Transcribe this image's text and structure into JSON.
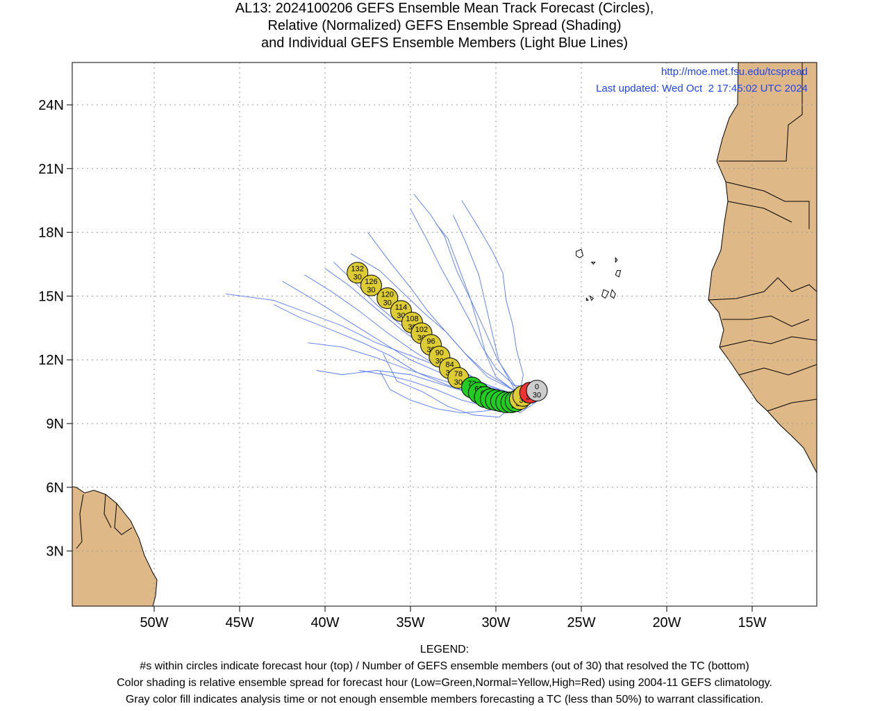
{
  "title": {
    "line1": "AL13: 2024100206 GEFS Ensemble Mean Track Forecast (Circles),",
    "line2": "Relative (Normalized) GEFS Ensemble Spread (Shading)",
    "line3": "and Individual GEFS Ensemble Members (Light Blue Lines)"
  },
  "source": {
    "url": "http://moe.met.fsu.edu/tcspread",
    "updated": "Last updated: Wed Oct  2 17:45:02 UTC 2024"
  },
  "axes": {
    "lat_ticks": [
      {
        "value": 3,
        "label": "3N"
      },
      {
        "value": 6,
        "label": "6N"
      },
      {
        "value": 9,
        "label": "9N"
      },
      {
        "value": 12,
        "label": "12N"
      },
      {
        "value": 15,
        "label": "15N"
      },
      {
        "value": 18,
        "label": "18N"
      },
      {
        "value": 21,
        "label": "21N"
      },
      {
        "value": 24,
        "label": "24N"
      }
    ],
    "lon_ticks": [
      {
        "value": -50,
        "label": "50W"
      },
      {
        "value": -45,
        "label": "45W"
      },
      {
        "value": -40,
        "label": "40W"
      },
      {
        "value": -35,
        "label": "35W"
      },
      {
        "value": -30,
        "label": "30W"
      },
      {
        "value": -25,
        "label": "25W"
      },
      {
        "value": -20,
        "label": "20W"
      },
      {
        "value": -15,
        "label": "15W"
      }
    ],
    "lon_range": [
      -55,
      -11.4
    ],
    "lat_range": [
      1.0,
      26.0
    ],
    "grid": true
  },
  "colors": {
    "land": "#deb887",
    "track": "#5577ee",
    "low_spread": "#22cc22",
    "normal_spread": "#ddcc33",
    "high_spread": "#ee3333",
    "analysis": "#cccccc",
    "link_text": "#2244ee"
  },
  "mean_track": [
    {
      "hour": "0",
      "members": "30",
      "lat": 10.55,
      "lon": -27.6,
      "spread": "analysis"
    },
    {
      "hour": "6",
      "members": "30",
      "lat": 10.45,
      "lon": -28.0,
      "spread": "high"
    },
    {
      "hour": "12",
      "members": "30",
      "lat": 10.3,
      "lon": -28.4,
      "spread": "normal"
    },
    {
      "hour": "18",
      "members": "30",
      "lat": 10.15,
      "lon": -28.6,
      "spread": "normal"
    },
    {
      "hour": "24",
      "members": "30",
      "lat": 10.05,
      "lon": -28.85,
      "spread": "low"
    },
    {
      "hour": "30",
      "members": "30",
      "lat": 10.0,
      "lon": -29.1,
      "spread": "low"
    },
    {
      "hour": "36",
      "members": "30",
      "lat": 10.0,
      "lon": -29.4,
      "spread": "low"
    },
    {
      "hour": "42",
      "members": "30",
      "lat": 10.05,
      "lon": -29.7,
      "spread": "low"
    },
    {
      "hour": "48",
      "members": "30",
      "lat": 10.1,
      "lon": -30.0,
      "spread": "low"
    },
    {
      "hour": "54",
      "members": "30",
      "lat": 10.15,
      "lon": -30.3,
      "spread": "low"
    },
    {
      "hour": "60",
      "members": "30",
      "lat": 10.25,
      "lon": -30.65,
      "spread": "low"
    },
    {
      "hour": "66",
      "members": "30",
      "lat": 10.45,
      "lon": -31.0,
      "spread": "low"
    },
    {
      "hour": "72",
      "members": "30",
      "lat": 10.7,
      "lon": -31.4,
      "spread": "low"
    },
    {
      "hour": "78",
      "members": "30",
      "lat": 11.15,
      "lon": -32.2,
      "spread": "normal"
    },
    {
      "hour": "84",
      "members": "30",
      "lat": 11.6,
      "lon": -32.7,
      "spread": "normal"
    },
    {
      "hour": "90",
      "members": "30",
      "lat": 12.15,
      "lon": -33.3,
      "spread": "normal"
    },
    {
      "hour": "96",
      "members": "30",
      "lat": 12.7,
      "lon": -33.8,
      "spread": "normal"
    },
    {
      "hour": "102",
      "members": "30",
      "lat": 13.25,
      "lon": -34.35,
      "spread": "normal"
    },
    {
      "hour": "108",
      "members": "30",
      "lat": 13.75,
      "lon": -34.9,
      "spread": "normal"
    },
    {
      "hour": "114",
      "members": "30",
      "lat": 14.3,
      "lon": -35.55,
      "spread": "normal"
    },
    {
      "hour": "120",
      "members": "30",
      "lat": 14.9,
      "lon": -36.35,
      "spread": "normal"
    },
    {
      "hour": "126",
      "members": "30",
      "lat": 15.5,
      "lon": -37.3,
      "spread": "normal"
    },
    {
      "hour": "132",
      "members": "30",
      "lat": 16.1,
      "lon": -38.1,
      "spread": "normal"
    }
  ],
  "members": [
    [
      [
        -27.3,
        10.6
      ],
      [
        -29,
        10.3
      ],
      [
        -31,
        10.9
      ],
      [
        -33,
        11.6
      ],
      [
        -35,
        12.2
      ],
      [
        -37,
        12.8
      ],
      [
        -39,
        13.6
      ],
      [
        -41,
        14.2
      ],
      [
        -43,
        14.8
      ],
      [
        -45.8,
        15.1
      ]
    ],
    [
      [
        -27.3,
        10.5
      ],
      [
        -29,
        10.1
      ],
      [
        -31,
        10.5
      ],
      [
        -33,
        11.0
      ],
      [
        -35,
        11.5
      ],
      [
        -37,
        12.1
      ],
      [
        -39,
        12.6
      ],
      [
        -41,
        12.8
      ]
    ],
    [
      [
        -27.3,
        10.4
      ],
      [
        -29,
        10.0
      ],
      [
        -31,
        10.6
      ],
      [
        -33,
        11.3
      ],
      [
        -35,
        12.0
      ],
      [
        -37,
        13.0
      ],
      [
        -39,
        14.0
      ],
      [
        -40.8,
        14.9
      ],
      [
        -42.5,
        15.7
      ]
    ],
    [
      [
        -27.3,
        10.5
      ],
      [
        -29,
        10.3
      ],
      [
        -31,
        11.0
      ],
      [
        -32.5,
        11.8
      ],
      [
        -34,
        12.6
      ],
      [
        -35.5,
        13.6
      ],
      [
        -37,
        14.6
      ],
      [
        -38.2,
        15.6
      ],
      [
        -39.5,
        16.6
      ]
    ],
    [
      [
        -27.3,
        10.6
      ],
      [
        -28.8,
        10.5
      ],
      [
        -30.5,
        11.2
      ],
      [
        -31.7,
        12.2
      ],
      [
        -32.8,
        13.2
      ],
      [
        -34,
        14.3
      ],
      [
        -35,
        15.4
      ],
      [
        -36.2,
        16.6
      ],
      [
        -37.5,
        18.0
      ]
    ],
    [
      [
        -27.3,
        10.6
      ],
      [
        -28.8,
        10.7
      ],
      [
        -30,
        11.6
      ],
      [
        -30.8,
        12.6
      ],
      [
        -31.5,
        13.8
      ],
      [
        -32.3,
        15.0
      ],
      [
        -33.2,
        16.3
      ],
      [
        -34,
        17.6
      ],
      [
        -35,
        19.1
      ]
    ],
    [
      [
        -27.3,
        10.5
      ],
      [
        -28.9,
        10.6
      ],
      [
        -29.8,
        11.9
      ],
      [
        -30.2,
        13.2
      ],
      [
        -30.6,
        14.6
      ],
      [
        -31.0,
        16.0
      ],
      [
        -31.8,
        17.6
      ],
      [
        -32.5,
        18.8
      ]
    ],
    [
      [
        -27.3,
        10.4
      ],
      [
        -29,
        10.0
      ],
      [
        -30.5,
        9.8
      ],
      [
        -32,
        10.1
      ],
      [
        -33.5,
        10.6
      ],
      [
        -35,
        11.0
      ],
      [
        -36.5,
        11.3
      ],
      [
        -38,
        11.5
      ]
    ],
    [
      [
        -27.3,
        10.3
      ],
      [
        -29,
        9.9
      ],
      [
        -30.5,
        9.6
      ],
      [
        -32,
        9.5
      ],
      [
        -33.5,
        9.7
      ],
      [
        -35,
        10.1
      ],
      [
        -36.2,
        10.6
      ],
      [
        -36.8,
        11.5
      ]
    ],
    [
      [
        -27.3,
        10.5
      ],
      [
        -29,
        10.2
      ],
      [
        -31,
        10.3
      ],
      [
        -33,
        10.8
      ],
      [
        -35,
        11.3
      ],
      [
        -37,
        11.5
      ],
      [
        -39,
        11.3
      ],
      [
        -40.5,
        11.5
      ]
    ],
    [
      [
        -27.3,
        10.5
      ],
      [
        -29,
        10.4
      ],
      [
        -30.8,
        10.9
      ],
      [
        -32.5,
        11.7
      ],
      [
        -34,
        12.5
      ],
      [
        -35.5,
        13.4
      ],
      [
        -37,
        14.4
      ],
      [
        -38.6,
        15.5
      ],
      [
        -40,
        16.3
      ]
    ],
    [
      [
        -27.3,
        10.6
      ],
      [
        -29,
        10.6
      ],
      [
        -30.6,
        11.4
      ],
      [
        -31.8,
        12.3
      ],
      [
        -32.9,
        13.3
      ],
      [
        -34.2,
        14.2
      ],
      [
        -35.5,
        15.2
      ],
      [
        -36.8,
        16.2
      ],
      [
        -38.5,
        17.0
      ]
    ],
    [
      [
        -27.3,
        10.6
      ],
      [
        -28.9,
        10.8
      ],
      [
        -29.9,
        12.0
      ],
      [
        -30.6,
        13.3
      ],
      [
        -31.4,
        14.7
      ],
      [
        -32.3,
        16.2
      ],
      [
        -33.0,
        17.8
      ],
      [
        -33.8,
        18.8
      ],
      [
        -34.8,
        19.8
      ]
    ],
    [
      [
        -27.3,
        10.5
      ],
      [
        -28.6,
        10.4
      ],
      [
        -28.4,
        11.3
      ],
      [
        -28.8,
        12.5
      ],
      [
        -29.0,
        13.6
      ],
      [
        -29.4,
        14.8
      ],
      [
        -29.6,
        16.1
      ],
      [
        -30.2,
        17.1
      ],
      [
        -31.0,
        18.2
      ],
      [
        -32.0,
        19.5
      ]
    ],
    [
      [
        -27.3,
        10.4
      ],
      [
        -29,
        10.1
      ],
      [
        -30.9,
        10.3
      ],
      [
        -32.8,
        10.8
      ],
      [
        -34.6,
        11.4
      ],
      [
        -36.2,
        12.2
      ],
      [
        -37.8,
        12.8
      ],
      [
        -39.6,
        13.4
      ],
      [
        -41.5,
        14.0
      ],
      [
        -43,
        14.6
      ]
    ],
    [
      [
        -27.3,
        10.5
      ],
      [
        -29,
        10.3
      ],
      [
        -31,
        10.8
      ],
      [
        -33,
        11.5
      ],
      [
        -34.8,
        12.4
      ],
      [
        -36.4,
        13.3
      ],
      [
        -38,
        14.3
      ],
      [
        -39.6,
        15.2
      ],
      [
        -41.2,
        16.0
      ]
    ],
    [
      [
        -27.3,
        10.5
      ],
      [
        -28.7,
        10.4
      ],
      [
        -30,
        11.2
      ],
      [
        -30.6,
        12.3
      ],
      [
        -31.0,
        13.5
      ],
      [
        -31.5,
        14.9
      ],
      [
        -32.2,
        16.4
      ],
      [
        -32.8,
        17.7
      ],
      [
        -33.5,
        18.4
      ]
    ],
    [
      [
        -27.3,
        10.2
      ],
      [
        -28.6,
        9.5
      ],
      [
        -29.1,
        9.8
      ],
      [
        -29.8,
        9.3
      ],
      [
        -31.3,
        9.4
      ],
      [
        -32.8,
        9.8
      ],
      [
        -34.3,
        10.5
      ],
      [
        -35.8,
        11.0
      ],
      [
        -36.6,
        12.3
      ]
    ]
  ],
  "islands": [
    [
      [
        -25.3,
        17.1
      ],
      [
        -25.0,
        17.2
      ],
      [
        -24.9,
        16.9
      ],
      [
        -25.1,
        16.8
      ],
      [
        -25.3,
        16.9
      ]
    ],
    [
      [
        -24.4,
        16.6
      ],
      [
        -24.2,
        16.6
      ],
      [
        -24.3,
        16.5
      ]
    ],
    [
      [
        -23.0,
        16.8
      ],
      [
        -22.9,
        16.7
      ],
      [
        -23.0,
        16.6
      ]
    ],
    [
      [
        -22.9,
        16.2
      ],
      [
        -22.7,
        16.2
      ],
      [
        -22.8,
        15.9
      ],
      [
        -23.0,
        16.0
      ]
    ],
    [
      [
        -23.7,
        15.3
      ],
      [
        -23.4,
        15.2
      ],
      [
        -23.6,
        14.9
      ],
      [
        -23.8,
        15.0
      ]
    ],
    [
      [
        -23.2,
        15.3
      ],
      [
        -23.0,
        15.1
      ],
      [
        -23.1,
        14.9
      ],
      [
        -23.3,
        15.0
      ]
    ],
    [
      [
        -24.5,
        15.0
      ],
      [
        -24.3,
        14.9
      ],
      [
        -24.4,
        14.8
      ]
    ],
    [
      [
        -24.7,
        14.9
      ],
      [
        -24.6,
        14.8
      ],
      [
        -24.7,
        14.8
      ]
    ]
  ],
  "legend": {
    "heading": "LEGEND:",
    "line1": "#s within circles indicate forecast hour (top) / Number of GEFS ensemble members (out of 30) that resolved the TC (bottom)",
    "line2": "Color shading is relative ensemble spread for forecast hour (Low=Green,Normal=Yellow,High=Red) using 2004-11 GEFS climatology.",
    "line3": "Gray color fill indicates analysis time or not enough ensemble members forecasting a TC (less than 50%) to warrant classification."
  }
}
